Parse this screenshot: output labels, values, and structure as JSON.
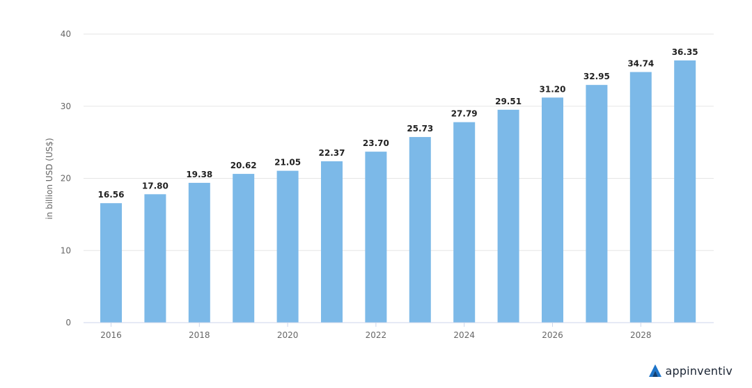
{
  "chart_data": {
    "type": "bar",
    "ylabel": "in billion USD (US$)",
    "ylim": [
      0,
      40
    ],
    "yticks": [
      0,
      10,
      20,
      30,
      40
    ],
    "x": [
      2016,
      2017,
      2018,
      2019,
      2020,
      2021,
      2022,
      2023,
      2024,
      2025,
      2026,
      2027,
      2028,
      2029
    ],
    "values": [
      16.56,
      17.8,
      19.38,
      20.62,
      21.05,
      22.37,
      23.7,
      25.73,
      27.79,
      29.51,
      31.2,
      32.95,
      34.74,
      36.35
    ],
    "value_labels": [
      "16.56",
      "17.80",
      "19.38",
      "20.62",
      "21.05",
      "22.37",
      "23.70",
      "25.73",
      "27.79",
      "29.51",
      "31.20",
      "32.95",
      "34.74",
      "36.35"
    ],
    "xtick_labels": [
      "2016",
      "2018",
      "2020",
      "2022",
      "2024",
      "2026",
      "2028"
    ],
    "xtick_values": [
      2016,
      2018,
      2020,
      2022,
      2024,
      2026,
      2028
    ],
    "bar_color": "#7cb9e8",
    "grid": true
  },
  "brand": {
    "name": "appinventiv",
    "logo_icon": "appinventiv-logo-icon"
  }
}
